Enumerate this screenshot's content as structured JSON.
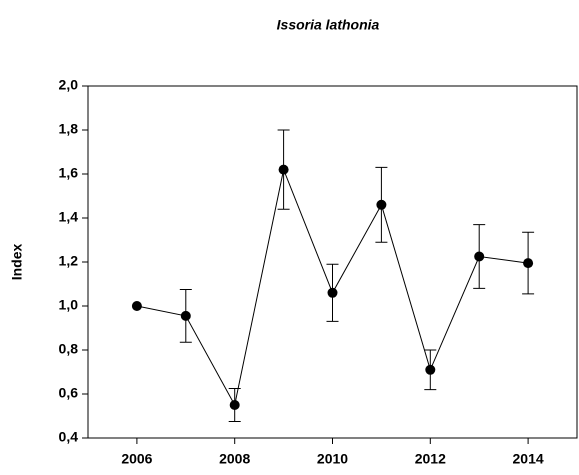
{
  "chart_data": {
    "type": "line",
    "title": "Issoria lathonia",
    "ylabel": "Index",
    "x": [
      2006,
      2007,
      2008,
      2009,
      2010,
      2011,
      2012,
      2013,
      2014
    ],
    "series": [
      {
        "color": "#000000",
        "values": [
          1.0,
          0.955,
          0.55,
          1.62,
          1.06,
          1.46,
          0.71,
          1.225,
          1.195
        ],
        "errors": [
          null,
          0.12,
          0.075,
          0.18,
          0.13,
          0.17,
          0.09,
          0.145,
          0.14
        ]
      }
    ],
    "xlim": [
      2005,
      2015
    ],
    "xticks": [
      2006,
      2008,
      2010,
      2012,
      2014
    ],
    "ylim": [
      0.4,
      2.0
    ],
    "yticks": [
      {
        "value": 0.4,
        "label": "0,4"
      },
      {
        "value": 0.6,
        "label": "0,6"
      },
      {
        "value": 0.8,
        "label": "0,8"
      },
      {
        "value": 1.0,
        "label": "1,0"
      },
      {
        "value": 1.2,
        "label": "1,2"
      },
      {
        "value": 1.4,
        "label": "1,4"
      },
      {
        "value": 1.6,
        "label": "1,6"
      },
      {
        "value": 1.8,
        "label": "1,8"
      },
      {
        "value": 2.0,
        "label": "2,0"
      }
    ],
    "grid": false
  }
}
